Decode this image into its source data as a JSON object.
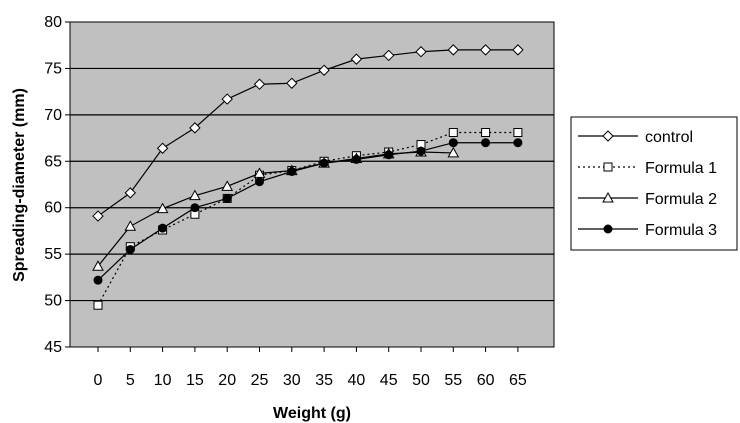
{
  "chart_data": {
    "type": "line",
    "title": "",
    "xlabel": "Weight (g)",
    "ylabel": "Spreading-diameter (mm)",
    "xlim": [
      0,
      65
    ],
    "ylim": [
      45,
      80
    ],
    "xticks": [
      "0",
      "5",
      "10",
      "15",
      "20",
      "25",
      "30",
      "35",
      "40",
      "45",
      "50",
      "55",
      "60",
      "65"
    ],
    "yticks": [
      "45",
      "50",
      "55",
      "60",
      "65",
      "70",
      "75",
      "80"
    ],
    "grid": "horizontal",
    "plot_background": "#c0c0c0",
    "legend_position": "right",
    "series": [
      {
        "name": "control",
        "marker": "diamond-open",
        "line": "solid",
        "x": [
          0,
          5,
          10,
          15,
          20,
          25,
          30,
          35,
          40,
          45,
          50,
          55,
          60,
          65
        ],
        "y": [
          59.1,
          61.6,
          66.4,
          68.6,
          71.7,
          73.3,
          73.4,
          74.8,
          76.0,
          76.4,
          76.8,
          77.0,
          77.0,
          77.0
        ]
      },
      {
        "name": "Formula 1",
        "marker": "square-open",
        "line": "dotted",
        "x": [
          0,
          5,
          10,
          15,
          20,
          25,
          30,
          35,
          40,
          45,
          50,
          55,
          60,
          65
        ],
        "y": [
          49.5,
          55.8,
          57.6,
          59.3,
          61.0,
          63.5,
          64.0,
          65.0,
          65.6,
          66.0,
          66.8,
          68.1,
          68.1,
          68.1
        ]
      },
      {
        "name": "Formula 2",
        "marker": "triangle-open",
        "line": "solid",
        "x": [
          0,
          5,
          10,
          15,
          20,
          25,
          30,
          35,
          40,
          45,
          50,
          55
        ],
        "y": [
          53.7,
          58.0,
          59.9,
          61.3,
          62.3,
          63.7,
          64.0,
          64.8,
          65.3,
          65.8,
          66.0,
          65.9
        ]
      },
      {
        "name": "Formula 3",
        "marker": "circle-filled",
        "line": "solid",
        "x": [
          0,
          5,
          10,
          15,
          20,
          25,
          30,
          35,
          40,
          45,
          50,
          55,
          60,
          65
        ],
        "y": [
          52.2,
          55.5,
          57.8,
          60.0,
          61.0,
          62.8,
          63.9,
          64.8,
          65.2,
          65.7,
          66.1,
          67.0,
          67.0,
          67.0
        ]
      }
    ]
  }
}
